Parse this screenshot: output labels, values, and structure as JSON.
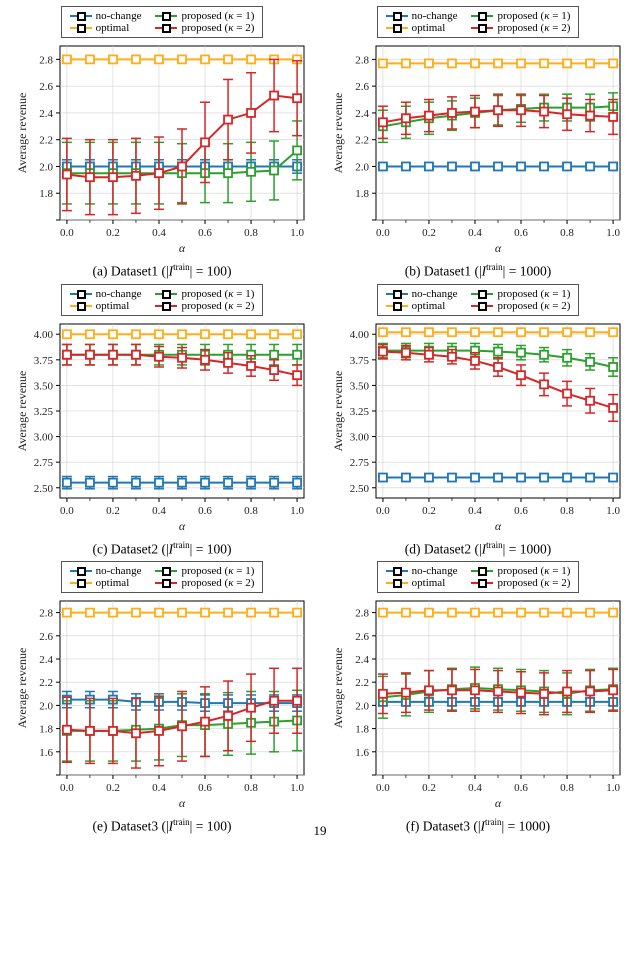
{
  "page_number": "19",
  "series": [
    {
      "id": "no-change",
      "label": "no-change",
      "color": "#1f77b4",
      "marker": "square"
    },
    {
      "id": "optimal",
      "label": "optimal",
      "color": "#ffae1a",
      "marker": "square"
    },
    {
      "id": "k1",
      "label": "proposed (κ = 1)",
      "color": "#2ca02c",
      "marker": "square"
    },
    {
      "id": "k2",
      "label": "proposed (κ = 2)",
      "color": "#d62728",
      "marker": "square"
    }
  ],
  "panel_meta": {
    "xlabel": "α",
    "ylabel": "Average revenue",
    "x_values": [
      0.0,
      0.1,
      0.2,
      0.3,
      0.4,
      0.5,
      0.6,
      0.7,
      0.8,
      0.9,
      1.0
    ],
    "xlim": [
      -0.03,
      1.03
    ],
    "xtick_major": [
      0.0,
      0.2,
      0.4,
      0.6,
      0.8,
      1.0
    ],
    "grid_color": "#d0d0d0",
    "axis_color": "#000000",
    "line_width": 2,
    "err_cap": 5,
    "marker_size": 4,
    "label_fontsize": 12,
    "tick_fontsize": 11
  },
  "panels": [
    {
      "caption_letter": "a",
      "caption_ds": "Dataset1",
      "caption_n": "100",
      "ylim": [
        1.6,
        2.9
      ],
      "ytick_step": 0.2,
      "series_data": {
        "no-change": {
          "y": [
            2.0,
            2.0,
            2.0,
            2.0,
            2.0,
            2.0,
            2.0,
            2.0,
            2.0,
            2.0,
            2.0
          ],
          "err": [
            0.05,
            0.05,
            0.05,
            0.05,
            0.05,
            0.05,
            0.05,
            0.05,
            0.05,
            0.05,
            0.05
          ]
        },
        "optimal": {
          "y": [
            2.8,
            2.8,
            2.8,
            2.8,
            2.8,
            2.8,
            2.8,
            2.8,
            2.8,
            2.8,
            2.8
          ],
          "err": [
            0.02,
            0.02,
            0.02,
            0.02,
            0.02,
            0.02,
            0.02,
            0.02,
            0.02,
            0.02,
            0.02
          ]
        },
        "k1": {
          "y": [
            1.95,
            1.95,
            1.95,
            1.95,
            1.95,
            1.95,
            1.95,
            1.95,
            1.96,
            1.97,
            2.12
          ],
          "err": [
            0.23,
            0.23,
            0.23,
            0.23,
            0.23,
            0.22,
            0.22,
            0.22,
            0.22,
            0.22,
            0.22
          ]
        },
        "k2": {
          "y": [
            1.94,
            1.92,
            1.92,
            1.93,
            1.95,
            2.0,
            2.18,
            2.35,
            2.4,
            2.53,
            2.51
          ],
          "err": [
            0.27,
            0.28,
            0.28,
            0.28,
            0.27,
            0.28,
            0.3,
            0.3,
            0.3,
            0.27,
            0.28
          ]
        }
      }
    },
    {
      "caption_letter": "b",
      "caption_ds": "Dataset1",
      "caption_n": "1000",
      "ylim": [
        1.6,
        2.9
      ],
      "ytick_step": 0.2,
      "series_data": {
        "no-change": {
          "y": [
            2.0,
            2.0,
            2.0,
            2.0,
            2.0,
            2.0,
            2.0,
            2.0,
            2.0,
            2.0,
            2.0
          ],
          "err": [
            0.02,
            0.02,
            0.02,
            0.02,
            0.02,
            0.02,
            0.02,
            0.02,
            0.02,
            0.02,
            0.02
          ]
        },
        "optimal": {
          "y": [
            2.77,
            2.77,
            2.77,
            2.77,
            2.77,
            2.77,
            2.77,
            2.77,
            2.77,
            2.77,
            2.77
          ],
          "err": [
            0.01,
            0.01,
            0.01,
            0.01,
            0.01,
            0.01,
            0.01,
            0.01,
            0.01,
            0.01,
            0.01
          ]
        },
        "k1": {
          "y": [
            2.3,
            2.33,
            2.36,
            2.38,
            2.4,
            2.42,
            2.43,
            2.44,
            2.44,
            2.44,
            2.45
          ],
          "err": [
            0.12,
            0.12,
            0.12,
            0.11,
            0.11,
            0.11,
            0.1,
            0.1,
            0.1,
            0.1,
            0.1
          ]
        },
        "k2": {
          "y": [
            2.33,
            2.36,
            2.38,
            2.4,
            2.41,
            2.42,
            2.42,
            2.41,
            2.39,
            2.38,
            2.37
          ],
          "err": [
            0.12,
            0.12,
            0.12,
            0.12,
            0.12,
            0.12,
            0.12,
            0.12,
            0.12,
            0.12,
            0.13
          ]
        }
      }
    },
    {
      "caption_letter": "c",
      "caption_ds": "Dataset2",
      "caption_n": "100",
      "ylim": [
        2.4,
        4.1
      ],
      "ytick_step": 0.25,
      "series_data": {
        "no-change": {
          "y": [
            2.55,
            2.55,
            2.55,
            2.55,
            2.55,
            2.55,
            2.55,
            2.55,
            2.55,
            2.55,
            2.55
          ],
          "err": [
            0.06,
            0.06,
            0.06,
            0.06,
            0.06,
            0.06,
            0.06,
            0.06,
            0.06,
            0.06,
            0.06
          ]
        },
        "optimal": {
          "y": [
            4.0,
            4.0,
            4.0,
            4.0,
            4.0,
            4.0,
            4.0,
            4.0,
            4.0,
            4.0,
            4.0
          ],
          "err": [
            0.03,
            0.03,
            0.03,
            0.03,
            0.03,
            0.03,
            0.03,
            0.03,
            0.03,
            0.03,
            0.03
          ]
        },
        "k1": {
          "y": [
            3.8,
            3.8,
            3.8,
            3.8,
            3.8,
            3.8,
            3.8,
            3.8,
            3.8,
            3.8,
            3.8
          ],
          "err": [
            0.1,
            0.1,
            0.1,
            0.1,
            0.1,
            0.1,
            0.1,
            0.1,
            0.1,
            0.1,
            0.1
          ]
        },
        "k2": {
          "y": [
            3.8,
            3.8,
            3.8,
            3.8,
            3.78,
            3.77,
            3.75,
            3.72,
            3.69,
            3.65,
            3.6
          ],
          "err": [
            0.1,
            0.1,
            0.1,
            0.1,
            0.1,
            0.1,
            0.1,
            0.1,
            0.1,
            0.1,
            0.1
          ]
        }
      }
    },
    {
      "caption_letter": "d",
      "caption_ds": "Dataset2",
      "caption_n": "1000",
      "ylim": [
        2.4,
        4.1
      ],
      "ytick_step": 0.25,
      "series_data": {
        "no-change": {
          "y": [
            2.6,
            2.6,
            2.6,
            2.6,
            2.6,
            2.6,
            2.6,
            2.6,
            2.6,
            2.6,
            2.6
          ],
          "err": [
            0.03,
            0.03,
            0.03,
            0.03,
            0.03,
            0.03,
            0.03,
            0.03,
            0.03,
            0.03,
            0.03
          ]
        },
        "optimal": {
          "y": [
            4.02,
            4.02,
            4.02,
            4.02,
            4.02,
            4.02,
            4.02,
            4.02,
            4.02,
            4.02,
            4.02
          ],
          "err": [
            0.02,
            0.02,
            0.02,
            0.02,
            0.02,
            0.02,
            0.02,
            0.02,
            0.02,
            0.02,
            0.02
          ]
        },
        "k1": {
          "y": [
            3.84,
            3.84,
            3.84,
            3.84,
            3.84,
            3.83,
            3.82,
            3.8,
            3.77,
            3.73,
            3.68
          ],
          "err": [
            0.07,
            0.07,
            0.07,
            0.07,
            0.07,
            0.07,
            0.07,
            0.07,
            0.08,
            0.08,
            0.09
          ]
        },
        "k2": {
          "y": [
            3.83,
            3.82,
            3.8,
            3.78,
            3.74,
            3.68,
            3.6,
            3.51,
            3.42,
            3.35,
            3.28
          ],
          "err": [
            0.07,
            0.07,
            0.07,
            0.07,
            0.08,
            0.09,
            0.1,
            0.11,
            0.12,
            0.12,
            0.13
          ]
        }
      }
    },
    {
      "caption_letter": "e",
      "caption_ds": "Dataset3",
      "caption_n": "100",
      "ylim": [
        1.4,
        2.9
      ],
      "ytick_step": 0.2,
      "series_data": {
        "no-change": {
          "y": [
            2.05,
            2.05,
            2.05,
            2.03,
            2.03,
            2.03,
            2.02,
            2.02,
            2.02,
            2.02,
            2.02
          ],
          "err": [
            0.07,
            0.07,
            0.07,
            0.07,
            0.07,
            0.07,
            0.07,
            0.07,
            0.07,
            0.07,
            0.07
          ]
        },
        "optimal": {
          "y": [
            2.8,
            2.8,
            2.8,
            2.8,
            2.8,
            2.8,
            2.8,
            2.8,
            2.8,
            2.8,
            2.8
          ],
          "err": [
            0.03,
            0.03,
            0.03,
            0.03,
            0.03,
            0.03,
            0.03,
            0.03,
            0.03,
            0.03,
            0.03
          ]
        },
        "k1": {
          "y": [
            1.78,
            1.78,
            1.78,
            1.79,
            1.8,
            1.83,
            1.83,
            1.84,
            1.85,
            1.86,
            1.87
          ],
          "err": [
            0.26,
            0.26,
            0.26,
            0.27,
            0.27,
            0.27,
            0.27,
            0.27,
            0.27,
            0.26,
            0.26
          ]
        },
        "k2": {
          "y": [
            1.79,
            1.78,
            1.78,
            1.76,
            1.78,
            1.82,
            1.86,
            1.91,
            1.98,
            2.04,
            2.04
          ],
          "err": [
            0.28,
            0.28,
            0.28,
            0.3,
            0.3,
            0.3,
            0.3,
            0.3,
            0.29,
            0.28,
            0.28
          ]
        }
      }
    },
    {
      "caption_letter": "f",
      "caption_ds": "Dataset3",
      "caption_n": "1000",
      "ylim": [
        1.4,
        2.9
      ],
      "ytick_step": 0.2,
      "series_data": {
        "no-change": {
          "y": [
            2.03,
            2.03,
            2.03,
            2.03,
            2.03,
            2.03,
            2.03,
            2.03,
            2.03,
            2.03,
            2.03
          ],
          "err": [
            0.03,
            0.03,
            0.03,
            0.03,
            0.03,
            0.03,
            0.03,
            0.03,
            0.03,
            0.03,
            0.03
          ]
        },
        "optimal": {
          "y": [
            2.8,
            2.8,
            2.8,
            2.8,
            2.8,
            2.8,
            2.8,
            2.8,
            2.8,
            2.8,
            2.8
          ],
          "err": [
            0.02,
            0.02,
            0.02,
            0.02,
            0.02,
            0.02,
            0.02,
            0.02,
            0.02,
            0.02,
            0.02
          ]
        },
        "k1": {
          "y": [
            2.07,
            2.09,
            2.12,
            2.14,
            2.15,
            2.14,
            2.13,
            2.12,
            2.1,
            2.13,
            2.14
          ],
          "err": [
            0.18,
            0.18,
            0.18,
            0.18,
            0.18,
            0.18,
            0.18,
            0.18,
            0.18,
            0.18,
            0.18
          ]
        },
        "k2": {
          "y": [
            2.1,
            2.11,
            2.13,
            2.13,
            2.13,
            2.12,
            2.11,
            2.1,
            2.12,
            2.12,
            2.13
          ],
          "err": [
            0.17,
            0.17,
            0.17,
            0.18,
            0.18,
            0.18,
            0.18,
            0.18,
            0.18,
            0.18,
            0.18
          ]
        }
      }
    }
  ]
}
